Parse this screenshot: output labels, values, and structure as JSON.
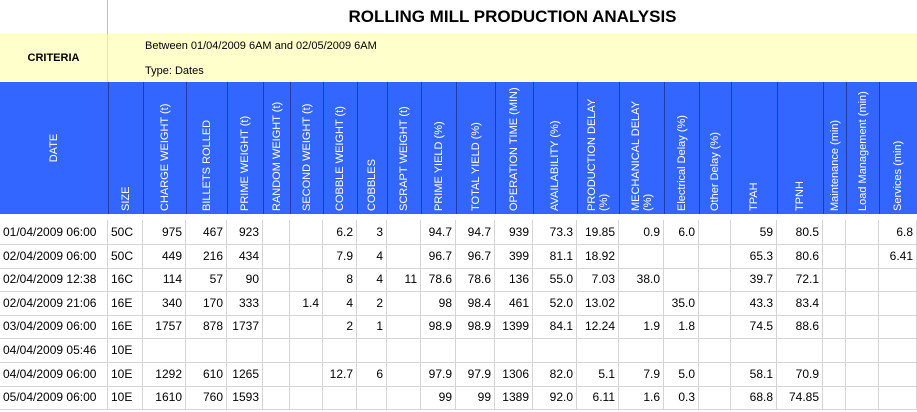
{
  "title": "ROLLING MILL PRODUCTION ANALYSIS",
  "criteria": {
    "label": "CRITERIA",
    "range": "Between 01/04/2009 6AM and 02/05/2009 6AM",
    "type": "Type: Dates"
  },
  "columns": [
    "DATE",
    "SIZE",
    "CHARGE WEIGHT (t)",
    "BILLETS ROLLED",
    "PRIME WEIGHT (t)",
    "RANDOM WEIGHT (t)",
    "SECOND WEIGHT (t)",
    "COBBLE WEIGHT (t)",
    "COBBLES",
    "SCRAPT WEIGHT (t)",
    "PRIME YIELD (%)",
    "TOTAL YIELD (%)",
    "OPERATION TIME (MIN)",
    "AVAILABILITY (%)",
    "PRODUCTION DELAY (%)",
    "MECHANICAL DELAY (%)",
    "Electrical Delay (%)",
    "Other Delay (%)",
    "TPAH",
    "TPNH",
    "Maintenance (min)",
    "Load Management (min)",
    "Services (min)"
  ],
  "rows": [
    [
      "01/04/2009 06:00",
      "50C",
      "975",
      "467",
      "923",
      "",
      "",
      "6.2",
      "3",
      "",
      "94.7",
      "94.7",
      "939",
      "73.3",
      "19.85",
      "0.9",
      "6.0",
      "",
      "59",
      "80.5",
      "",
      "",
      "6.8"
    ],
    [
      "02/04/2009 06:00",
      "50C",
      "449",
      "216",
      "434",
      "",
      "",
      "7.9",
      "4",
      "",
      "96.7",
      "96.7",
      "399",
      "81.1",
      "18.92",
      "",
      "",
      "",
      "65.3",
      "80.6",
      "",
      "",
      "6.41"
    ],
    [
      "02/04/2009 12:38",
      "16C",
      "114",
      "57",
      "90",
      "",
      "",
      "8",
      "4",
      "11",
      "78.6",
      "78.6",
      "136",
      "55.0",
      "7.03",
      "38.0",
      "",
      "",
      "39.7",
      "72.1",
      "",
      "",
      ""
    ],
    [
      "02/04/2009 21:06",
      "16E",
      "340",
      "170",
      "333",
      "",
      "1.4",
      "4",
      "2",
      "",
      "98",
      "98.4",
      "461",
      "52.0",
      "13.02",
      "",
      "35.0",
      "",
      "43.3",
      "83.4",
      "",
      "",
      ""
    ],
    [
      "03/04/2009 06:00",
      "16E",
      "1757",
      "878",
      "1737",
      "",
      "",
      "2",
      "1",
      "",
      "98.9",
      "98.9",
      "1399",
      "84.1",
      "12.24",
      "1.9",
      "1.8",
      "",
      "74.5",
      "88.6",
      "",
      "",
      ""
    ],
    [
      "04/04/2009 05:46",
      "10E",
      "",
      "",
      "",
      "",
      "",
      "",
      "",
      "",
      "",
      "",
      "",
      "",
      "",
      "",
      "",
      "",
      "",
      "",
      "",
      "",
      ""
    ],
    [
      "04/04/2009 06:00",
      "10E",
      "1292",
      "610",
      "1265",
      "",
      "",
      "12.7",
      "6",
      "",
      "97.9",
      "97.9",
      "1306",
      "82.0",
      "5.1",
      "7.9",
      "5.0",
      "",
      "58.1",
      "70.9",
      "",
      "",
      ""
    ],
    [
      "05/04/2009 06:00",
      "10E",
      "1610",
      "760",
      "1593",
      "",
      "",
      "",
      "",
      "",
      "99",
      "99",
      "1389",
      "92.0",
      "6.11",
      "1.6",
      "0.3",
      "",
      "68.8",
      "74.85",
      "",
      "",
      ""
    ]
  ]
}
